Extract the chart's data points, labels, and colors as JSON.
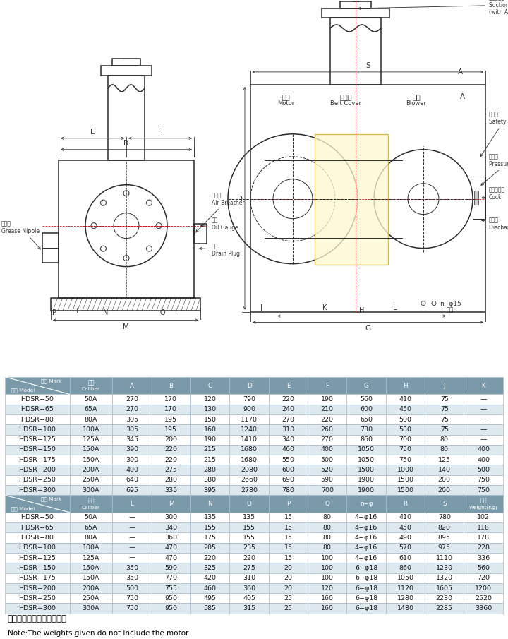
{
  "table1_header_row1": [
    "记号 Mark",
    "口径",
    "A",
    "B",
    "C",
    "D",
    "E",
    "F",
    "G",
    "H",
    "J",
    "K"
  ],
  "table1_header_row2": [
    "型式 Model",
    "Caliber",
    "",
    "",
    "",
    "",
    "",
    "",
    "",
    "",
    "",
    ""
  ],
  "table1_data": [
    [
      "HDSR−50",
      "50A",
      "270",
      "170",
      "120",
      "790",
      "220",
      "190",
      "560",
      "410",
      "75",
      "—"
    ],
    [
      "HDSR−65",
      "65A",
      "270",
      "170",
      "130",
      "900",
      "240",
      "210",
      "600",
      "450",
      "75",
      "—"
    ],
    [
      "HDSR−80",
      "80A",
      "305",
      "195",
      "150",
      "1170",
      "270",
      "220",
      "650",
      "500",
      "75",
      "—"
    ],
    [
      "HDSR−100",
      "100A",
      "305",
      "195",
      "160",
      "1240",
      "310",
      "260",
      "730",
      "580",
      "75",
      "—"
    ],
    [
      "HDSR−125",
      "125A",
      "345",
      "200",
      "190",
      "1410",
      "340",
      "270",
      "860",
      "700",
      "80",
      "—"
    ],
    [
      "HDSR−150",
      "150A",
      "390",
      "220",
      "215",
      "1680",
      "460",
      "400",
      "1050",
      "750",
      "80",
      "400"
    ],
    [
      "HDSR−175",
      "150A",
      "390",
      "220",
      "215",
      "1680",
      "550",
      "500",
      "1050",
      "750",
      "125",
      "400"
    ],
    [
      "HDSR−200",
      "200A",
      "490",
      "275",
      "280",
      "2080",
      "600",
      "520",
      "1500",
      "1000",
      "140",
      "500"
    ],
    [
      "HDSR−250",
      "250A",
      "640",
      "280",
      "380",
      "2660",
      "690",
      "590",
      "1900",
      "1500",
      "200",
      "750"
    ],
    [
      "HDSR−300",
      "300A",
      "695",
      "335",
      "395",
      "2780",
      "780",
      "700",
      "1900",
      "1500",
      "200",
      "750"
    ]
  ],
  "table2_header_row1": [
    "记号 Mark",
    "口径",
    "L",
    "M",
    "N",
    "O",
    "P",
    "Q",
    "n−φ",
    "R",
    "S",
    "重量"
  ],
  "table2_header_row2": [
    "型式 Model",
    "Caliber",
    "",
    "",
    "",
    "",
    "",
    "",
    "",
    "",
    "",
    "Weight(Kg)"
  ],
  "table2_data": [
    [
      "HDSR−50",
      "50A",
      "—",
      "300",
      "135",
      "135",
      "15",
      "80",
      "4−φ16",
      "410",
      "780",
      "102"
    ],
    [
      "HDSR−65",
      "65A",
      "—",
      "340",
      "155",
      "155",
      "15",
      "80",
      "4−φ16",
      "450",
      "820",
      "118"
    ],
    [
      "HDSR−80",
      "80A",
      "—",
      "360",
      "175",
      "155",
      "15",
      "80",
      "4−φ16",
      "490",
      "895",
      "178"
    ],
    [
      "HDSR−100",
      "100A",
      "—",
      "470",
      "205",
      "235",
      "15",
      "80",
      "4−φ16",
      "570",
      "975",
      "228"
    ],
    [
      "HDSR−125",
      "125A",
      "—",
      "470",
      "220",
      "220",
      "15",
      "100",
      "4−φ16",
      "610",
      "1110",
      "336"
    ],
    [
      "HDSR−150",
      "150A",
      "350",
      "590",
      "325",
      "275",
      "20",
      "100",
      "6−φ18",
      "860",
      "1230",
      "560"
    ],
    [
      "HDSR−175",
      "150A",
      "350",
      "770",
      "420",
      "310",
      "20",
      "100",
      "6−φ18",
      "1050",
      "1320",
      "720"
    ],
    [
      "HDSR−200",
      "200A",
      "500",
      "755",
      "460",
      "360",
      "20",
      "120",
      "6−φ18",
      "1120",
      "1605",
      "1200"
    ],
    [
      "HDSR−250",
      "250A",
      "750",
      "950",
      "495",
      "405",
      "25",
      "160",
      "6−φ18",
      "1280",
      "2230",
      "2520"
    ],
    [
      "HDSR−300",
      "300A",
      "750",
      "950",
      "585",
      "315",
      "25",
      "160",
      "6−φ18",
      "1480",
      "2285",
      "3360"
    ]
  ],
  "note_cn": "注：重量中不包括电机重量",
  "note_en": "Note:The weights given do not include the motor",
  "header_bg": "#7a9aaa",
  "header_fg": "#ffffff",
  "alt_row_bg": "#dde8ef",
  "normal_row_bg": "#ffffff",
  "border_color": "#aabbcc",
  "text_color": "#1a1a1a",
  "line_color": "#2a2a2a",
  "dim_color": "#333333",
  "red_dash": "#cc0000"
}
